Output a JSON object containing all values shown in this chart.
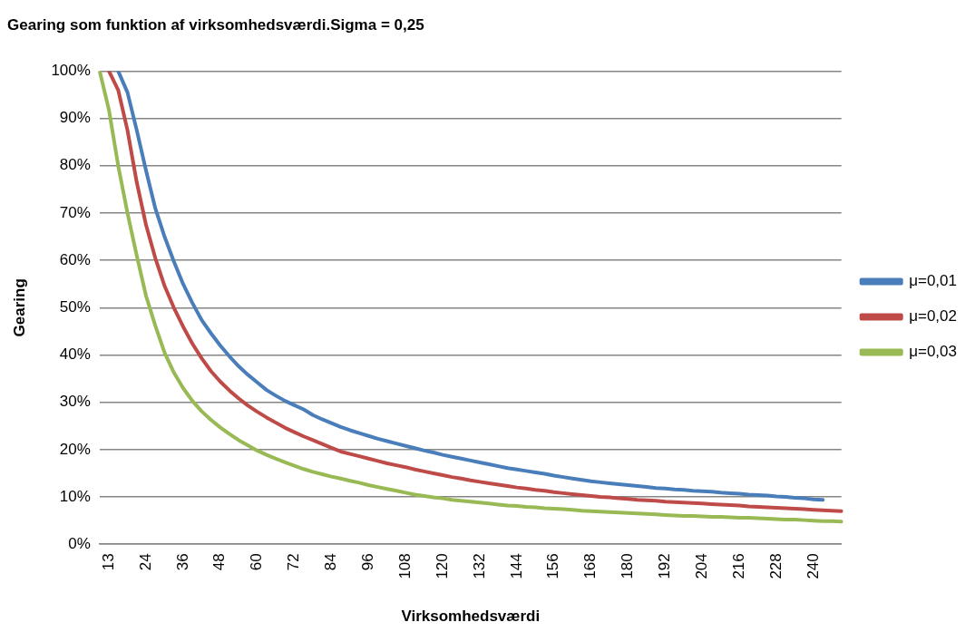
{
  "chart_data": {
    "type": "line",
    "title": "Gearing som funktion af virksomhedsværdi.Sigma = 0,25",
    "xlabel": "Virksomhedsværdi",
    "ylabel": "Gearing",
    "categories": [
      null,
      "13",
      null,
      null,
      null,
      "24",
      null,
      null,
      null,
      "36",
      null,
      null,
      null,
      "48",
      null,
      null,
      null,
      "60",
      null,
      null,
      null,
      "72",
      null,
      null,
      null,
      "84",
      null,
      null,
      null,
      "96",
      null,
      null,
      null,
      "108",
      null,
      null,
      null,
      "120",
      null,
      null,
      null,
      "132",
      null,
      null,
      null,
      "144",
      null,
      null,
      null,
      "156",
      null,
      null,
      null,
      "168",
      null,
      null,
      null,
      "180",
      null,
      null,
      null,
      "192",
      null,
      null,
      null,
      "204",
      null,
      null,
      null,
      "216",
      null,
      null,
      null,
      "228",
      null,
      null,
      null,
      "240",
      null,
      null,
      null
    ],
    "series": [
      {
        "name": "μ=0,01",
        "color": "#4a7ebb",
        "values": [
          null,
          null,
          100,
          95.5,
          87.5,
          79,
          71,
          65,
          59.8,
          55,
          51,
          47.4,
          44.6,
          42,
          39.7,
          37.6,
          35.8,
          34.2,
          32.6,
          31.4,
          30.3,
          29.4,
          28.5,
          27.3,
          26.4,
          25.6,
          24.8,
          24.1,
          23.5,
          22.9,
          22.3,
          21.8,
          21.3,
          20.8,
          20.3,
          19.8,
          19.4,
          18.9,
          18.5,
          18.1,
          17.7,
          17.3,
          16.9,
          16.5,
          16.1,
          15.8,
          15.5,
          15.2,
          14.9,
          14.5,
          14.2,
          13.9,
          13.6,
          13.3,
          13.1,
          12.9,
          12.7,
          12.5,
          12.3,
          12.1,
          11.9,
          11.8,
          11.6,
          11.5,
          11.3,
          11.2,
          11.1,
          10.9,
          10.8,
          10.7,
          10.5,
          10.4,
          10.3,
          10.1,
          10.0,
          9.8,
          9.7,
          9.5,
          9.4,
          null,
          null
        ]
      },
      {
        "name": "μ=0,02",
        "color": "#be4b48",
        "values": [
          null,
          100,
          96,
          87.5,
          76.5,
          67.5,
          60.5,
          54.6,
          50,
          46,
          42.4,
          39.3,
          36.6,
          34.4,
          32.5,
          30.8,
          29.3,
          28,
          26.8,
          25.7,
          24.6,
          23.7,
          22.8,
          22.0,
          21.2,
          20.4,
          19.6,
          19.1,
          18.6,
          18.1,
          17.6,
          17.1,
          16.7,
          16.3,
          15.8,
          15.4,
          15.0,
          14.6,
          14.2,
          13.9,
          13.5,
          13.2,
          12.9,
          12.6,
          12.3,
          12.0,
          11.8,
          11.5,
          11.3,
          11.0,
          10.8,
          10.6,
          10.4,
          10.2,
          10.0,
          9.9,
          9.7,
          9.6,
          9.4,
          9.3,
          9.2,
          9.0,
          8.9,
          8.8,
          8.7,
          8.6,
          8.5,
          8.4,
          8.3,
          8.2,
          8.0,
          7.9,
          7.8,
          7.7,
          7.6,
          7.5,
          7.4,
          7.3,
          7.2,
          7.1,
          7.0
        ]
      },
      {
        "name": "μ=0,03",
        "color": "#98b954",
        "values": [
          100,
          91.8,
          80,
          70,
          61,
          52.5,
          46.2,
          40.5,
          36.3,
          33,
          30.3,
          28.1,
          26.3,
          24.7,
          23.3,
          22,
          20.9,
          19.8,
          18.9,
          18.1,
          17.3,
          16.6,
          15.9,
          15.3,
          14.8,
          14.3,
          13.9,
          13.4,
          13.0,
          12.5,
          12.1,
          11.7,
          11.3,
          10.9,
          10.5,
          10.2,
          9.9,
          9.7,
          9.4,
          9.2,
          9.0,
          8.8,
          8.6,
          8.4,
          8.2,
          8.1,
          7.9,
          7.8,
          7.6,
          7.5,
          7.4,
          7.3,
          7.1,
          7.0,
          6.9,
          6.8,
          6.7,
          6.6,
          6.5,
          6.4,
          6.3,
          6.2,
          6.1,
          6.0,
          6.0,
          5.9,
          5.8,
          5.8,
          5.7,
          5.6,
          5.6,
          5.5,
          5.4,
          5.3,
          5.2,
          5.2,
          5.1,
          5.0,
          4.9,
          4.9,
          4.8
        ]
      }
    ],
    "ylim": [
      0,
      100
    ],
    "yticks": [
      {
        "value": 0,
        "label": "0%"
      },
      {
        "value": 10,
        "label": "10%"
      },
      {
        "value": 20,
        "label": "20%"
      },
      {
        "value": 30,
        "label": "30%"
      },
      {
        "value": 40,
        "label": "40%"
      },
      {
        "value": 50,
        "label": "50%"
      },
      {
        "value": 60,
        "label": "60%"
      },
      {
        "value": 70,
        "label": "70%"
      },
      {
        "value": 80,
        "label": "80%"
      },
      {
        "value": 90,
        "label": "90%"
      },
      {
        "value": 100,
        "label": "100%"
      }
    ],
    "grid": "y",
    "legend": "right",
    "marker": "none",
    "line_style": "solid"
  }
}
